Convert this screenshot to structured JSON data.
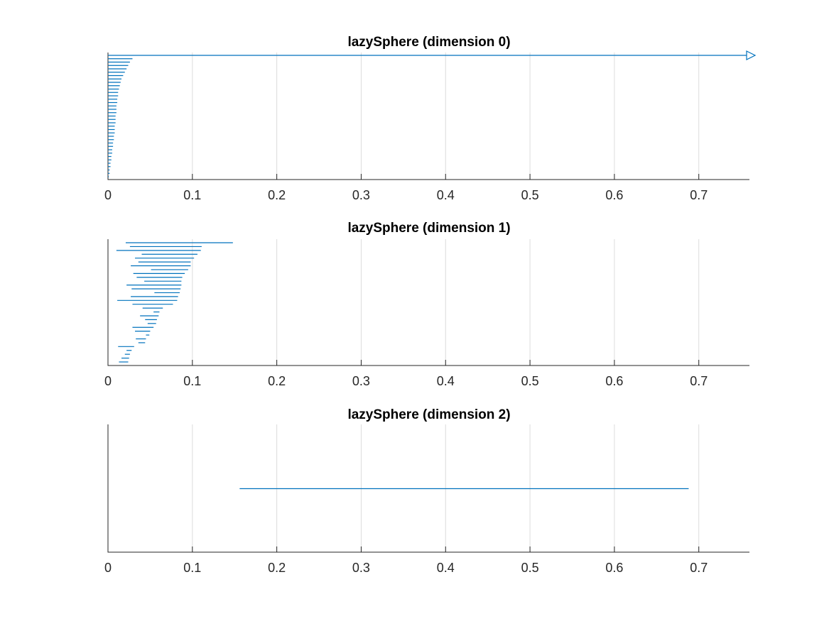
{
  "chart_data": [
    {
      "type": "barcode",
      "title": "lazySphere (dimension 0)",
      "xlim": [
        0,
        0.76
      ],
      "x_ticks": [
        0,
        0.1,
        0.2,
        0.3,
        0.4,
        0.5,
        0.6,
        0.7
      ],
      "x_tick_labels": [
        "0",
        "0.1",
        "0.2",
        "0.3",
        "0.4",
        "0.5",
        "0.6",
        "0.7"
      ],
      "grid": "x-major",
      "intervals": [
        {
          "birth": 0,
          "death": null
        },
        {
          "birth": 0,
          "death": 0.029
        },
        {
          "birth": 0,
          "death": 0.026
        },
        {
          "birth": 0,
          "death": 0.024
        },
        {
          "birth": 0,
          "death": 0.022
        },
        {
          "birth": 0,
          "death": 0.02
        },
        {
          "birth": 0,
          "death": 0.018
        },
        {
          "birth": 0,
          "death": 0.016
        },
        {
          "birth": 0,
          "death": 0.015
        },
        {
          "birth": 0,
          "death": 0.014
        },
        {
          "birth": 0,
          "death": 0.013
        },
        {
          "birth": 0,
          "death": 0.012
        },
        {
          "birth": 0,
          "death": 0.012
        },
        {
          "birth": 0,
          "death": 0.011
        },
        {
          "birth": 0,
          "death": 0.011
        },
        {
          "birth": 0,
          "death": 0.01
        },
        {
          "birth": 0,
          "death": 0.01
        },
        {
          "birth": 0,
          "death": 0.01
        },
        {
          "birth": 0,
          "death": 0.009
        },
        {
          "birth": 0,
          "death": 0.009
        },
        {
          "birth": 0,
          "death": 0.009
        },
        {
          "birth": 0,
          "death": 0.008
        },
        {
          "birth": 0,
          "death": 0.008
        },
        {
          "birth": 0,
          "death": 0.008
        },
        {
          "birth": 0,
          "death": 0.007
        },
        {
          "birth": 0,
          "death": 0.007
        },
        {
          "birth": 0,
          "death": 0.006
        },
        {
          "birth": 0,
          "death": 0.006
        },
        {
          "birth": 0,
          "death": 0.005
        },
        {
          "birth": 0,
          "death": 0.005
        },
        {
          "birth": 0,
          "death": 0.004
        },
        {
          "birth": 0,
          "death": 0.004
        },
        {
          "birth": 0,
          "death": 0.003
        },
        {
          "birth": 0,
          "death": 0.003
        },
        {
          "birth": 0,
          "death": 0.002
        },
        {
          "birth": 0,
          "death": 0.002
        },
        {
          "birth": 0,
          "death": 0.001
        }
      ]
    },
    {
      "type": "barcode",
      "title": "lazySphere (dimension 1)",
      "xlim": [
        0,
        0.76
      ],
      "x_ticks": [
        0,
        0.1,
        0.2,
        0.3,
        0.4,
        0.5,
        0.6,
        0.7
      ],
      "x_tick_labels": [
        "0",
        "0.1",
        "0.2",
        "0.3",
        "0.4",
        "0.5",
        "0.6",
        "0.7"
      ],
      "grid": "x-major",
      "intervals": [
        {
          "birth": 0.021,
          "death": 0.148
        },
        {
          "birth": 0.026,
          "death": 0.111
        },
        {
          "birth": 0.01,
          "death": 0.11
        },
        {
          "birth": 0.04,
          "death": 0.106
        },
        {
          "birth": 0.032,
          "death": 0.102
        },
        {
          "birth": 0.036,
          "death": 0.098
        },
        {
          "birth": 0.027,
          "death": 0.098
        },
        {
          "birth": 0.051,
          "death": 0.095
        },
        {
          "birth": 0.03,
          "death": 0.091
        },
        {
          "birth": 0.034,
          "death": 0.088
        },
        {
          "birth": 0.043,
          "death": 0.087
        },
        {
          "birth": 0.022,
          "death": 0.087
        },
        {
          "birth": 0.028,
          "death": 0.086
        },
        {
          "birth": 0.055,
          "death": 0.085
        },
        {
          "birth": 0.027,
          "death": 0.083
        },
        {
          "birth": 0.011,
          "death": 0.082
        },
        {
          "birth": 0.029,
          "death": 0.077
        },
        {
          "birth": 0.041,
          "death": 0.065
        },
        {
          "birth": 0.054,
          "death": 0.061
        },
        {
          "birth": 0.038,
          "death": 0.06
        },
        {
          "birth": 0.044,
          "death": 0.058
        },
        {
          "birth": 0.047,
          "death": 0.057
        },
        {
          "birth": 0.029,
          "death": 0.054
        },
        {
          "birth": 0.032,
          "death": 0.05
        },
        {
          "birth": 0.045,
          "death": 0.049
        },
        {
          "birth": 0.033,
          "death": 0.045
        },
        {
          "birth": 0.036,
          "death": 0.044
        },
        {
          "birth": 0.012,
          "death": 0.031
        },
        {
          "birth": 0.022,
          "death": 0.028
        },
        {
          "birth": 0.02,
          "death": 0.026
        },
        {
          "birth": 0.016,
          "death": 0.025
        },
        {
          "birth": 0.013,
          "death": 0.024
        }
      ]
    },
    {
      "type": "barcode",
      "title": "lazySphere (dimension 2)",
      "xlim": [
        0,
        0.76
      ],
      "x_ticks": [
        0,
        0.1,
        0.2,
        0.3,
        0.4,
        0.5,
        0.6,
        0.7
      ],
      "x_tick_labels": [
        "0",
        "0.1",
        "0.2",
        "0.3",
        "0.4",
        "0.5",
        "0.6",
        "0.7"
      ],
      "grid": "x-major",
      "intervals": [
        {
          "birth": 0.156,
          "death": 0.688
        }
      ]
    }
  ],
  "colors": {
    "bar": "#0072bd",
    "grid": "#dcdcdc",
    "axis": "#262626"
  }
}
